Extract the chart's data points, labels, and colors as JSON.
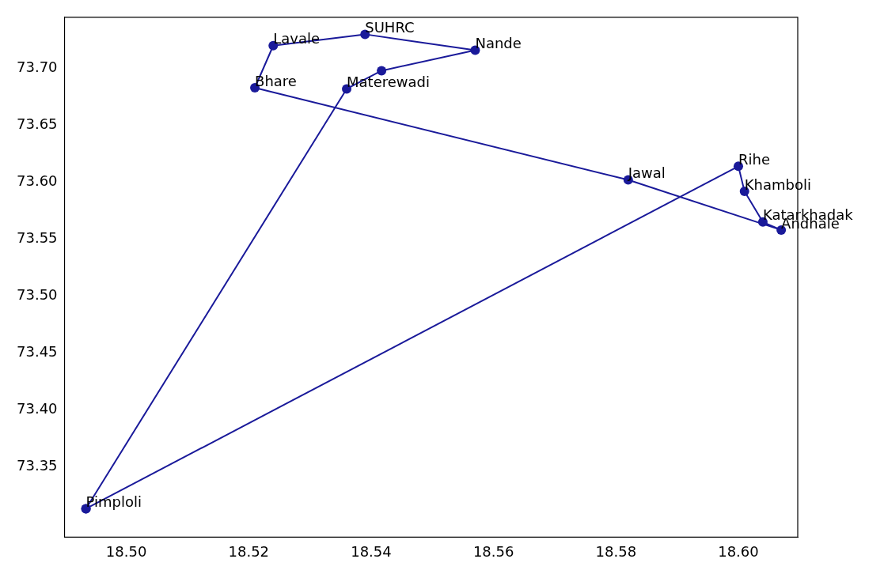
{
  "chart_data": {
    "type": "scatter",
    "marker": "circle",
    "line_style": "solid",
    "grid": false,
    "legend": false,
    "xlim": [
      18.4899,
      18.6097
    ],
    "ylim": [
      73.288,
      73.745
    ],
    "xticks": [
      {
        "value": 18.5,
        "label": "18.50"
      },
      {
        "value": 18.52,
        "label": "18.52"
      },
      {
        "value": 18.54,
        "label": "18.54"
      },
      {
        "value": 18.56,
        "label": "18.56"
      },
      {
        "value": 18.58,
        "label": "18.58"
      },
      {
        "value": 18.6,
        "label": "18.60"
      }
    ],
    "yticks": [
      {
        "value": 73.35,
        "label": "73.35"
      },
      {
        "value": 73.4,
        "label": "73.40"
      },
      {
        "value": 73.45,
        "label": "73.45"
      },
      {
        "value": 73.5,
        "label": "73.50"
      },
      {
        "value": 73.55,
        "label": "73.55"
      },
      {
        "value": 73.6,
        "label": "73.60"
      },
      {
        "value": 73.65,
        "label": "73.65"
      },
      {
        "value": 73.7,
        "label": "73.70"
      }
    ],
    "series": [
      {
        "color": "#1a1a9a",
        "x": [
          18.4934,
          18.536,
          18.5417,
          18.557,
          18.539,
          18.524,
          18.521,
          18.582,
          18.607,
          18.604,
          18.601,
          18.6,
          18.4934
        ],
        "values": [
          73.313,
          73.682,
          73.698,
          73.716,
          73.73,
          73.72,
          73.683,
          73.602,
          73.558,
          73.565,
          73.592,
          73.614,
          73.313
        ]
      }
    ],
    "annotations": [
      {
        "text": "Pimploli",
        "x": 18.4934,
        "y": 73.313
      },
      {
        "text": "Materewadi",
        "x": 18.536,
        "y": 73.682
      },
      {
        "text": "Nande",
        "x": 18.557,
        "y": 73.716
      },
      {
        "text": "SUHRC",
        "x": 18.539,
        "y": 73.73
      },
      {
        "text": "Lavale",
        "x": 18.524,
        "y": 73.72
      },
      {
        "text": "Bhare",
        "x": 18.521,
        "y": 73.683
      },
      {
        "text": "Jawal",
        "x": 18.582,
        "y": 73.602
      },
      {
        "text": "Andhale",
        "x": 18.607,
        "y": 73.558
      },
      {
        "text": "Katarkhadak",
        "x": 18.604,
        "y": 73.565
      },
      {
        "text": "Khamboli",
        "x": 18.601,
        "y": 73.592
      },
      {
        "text": "Rihe",
        "x": 18.6,
        "y": 73.614
      }
    ]
  }
}
